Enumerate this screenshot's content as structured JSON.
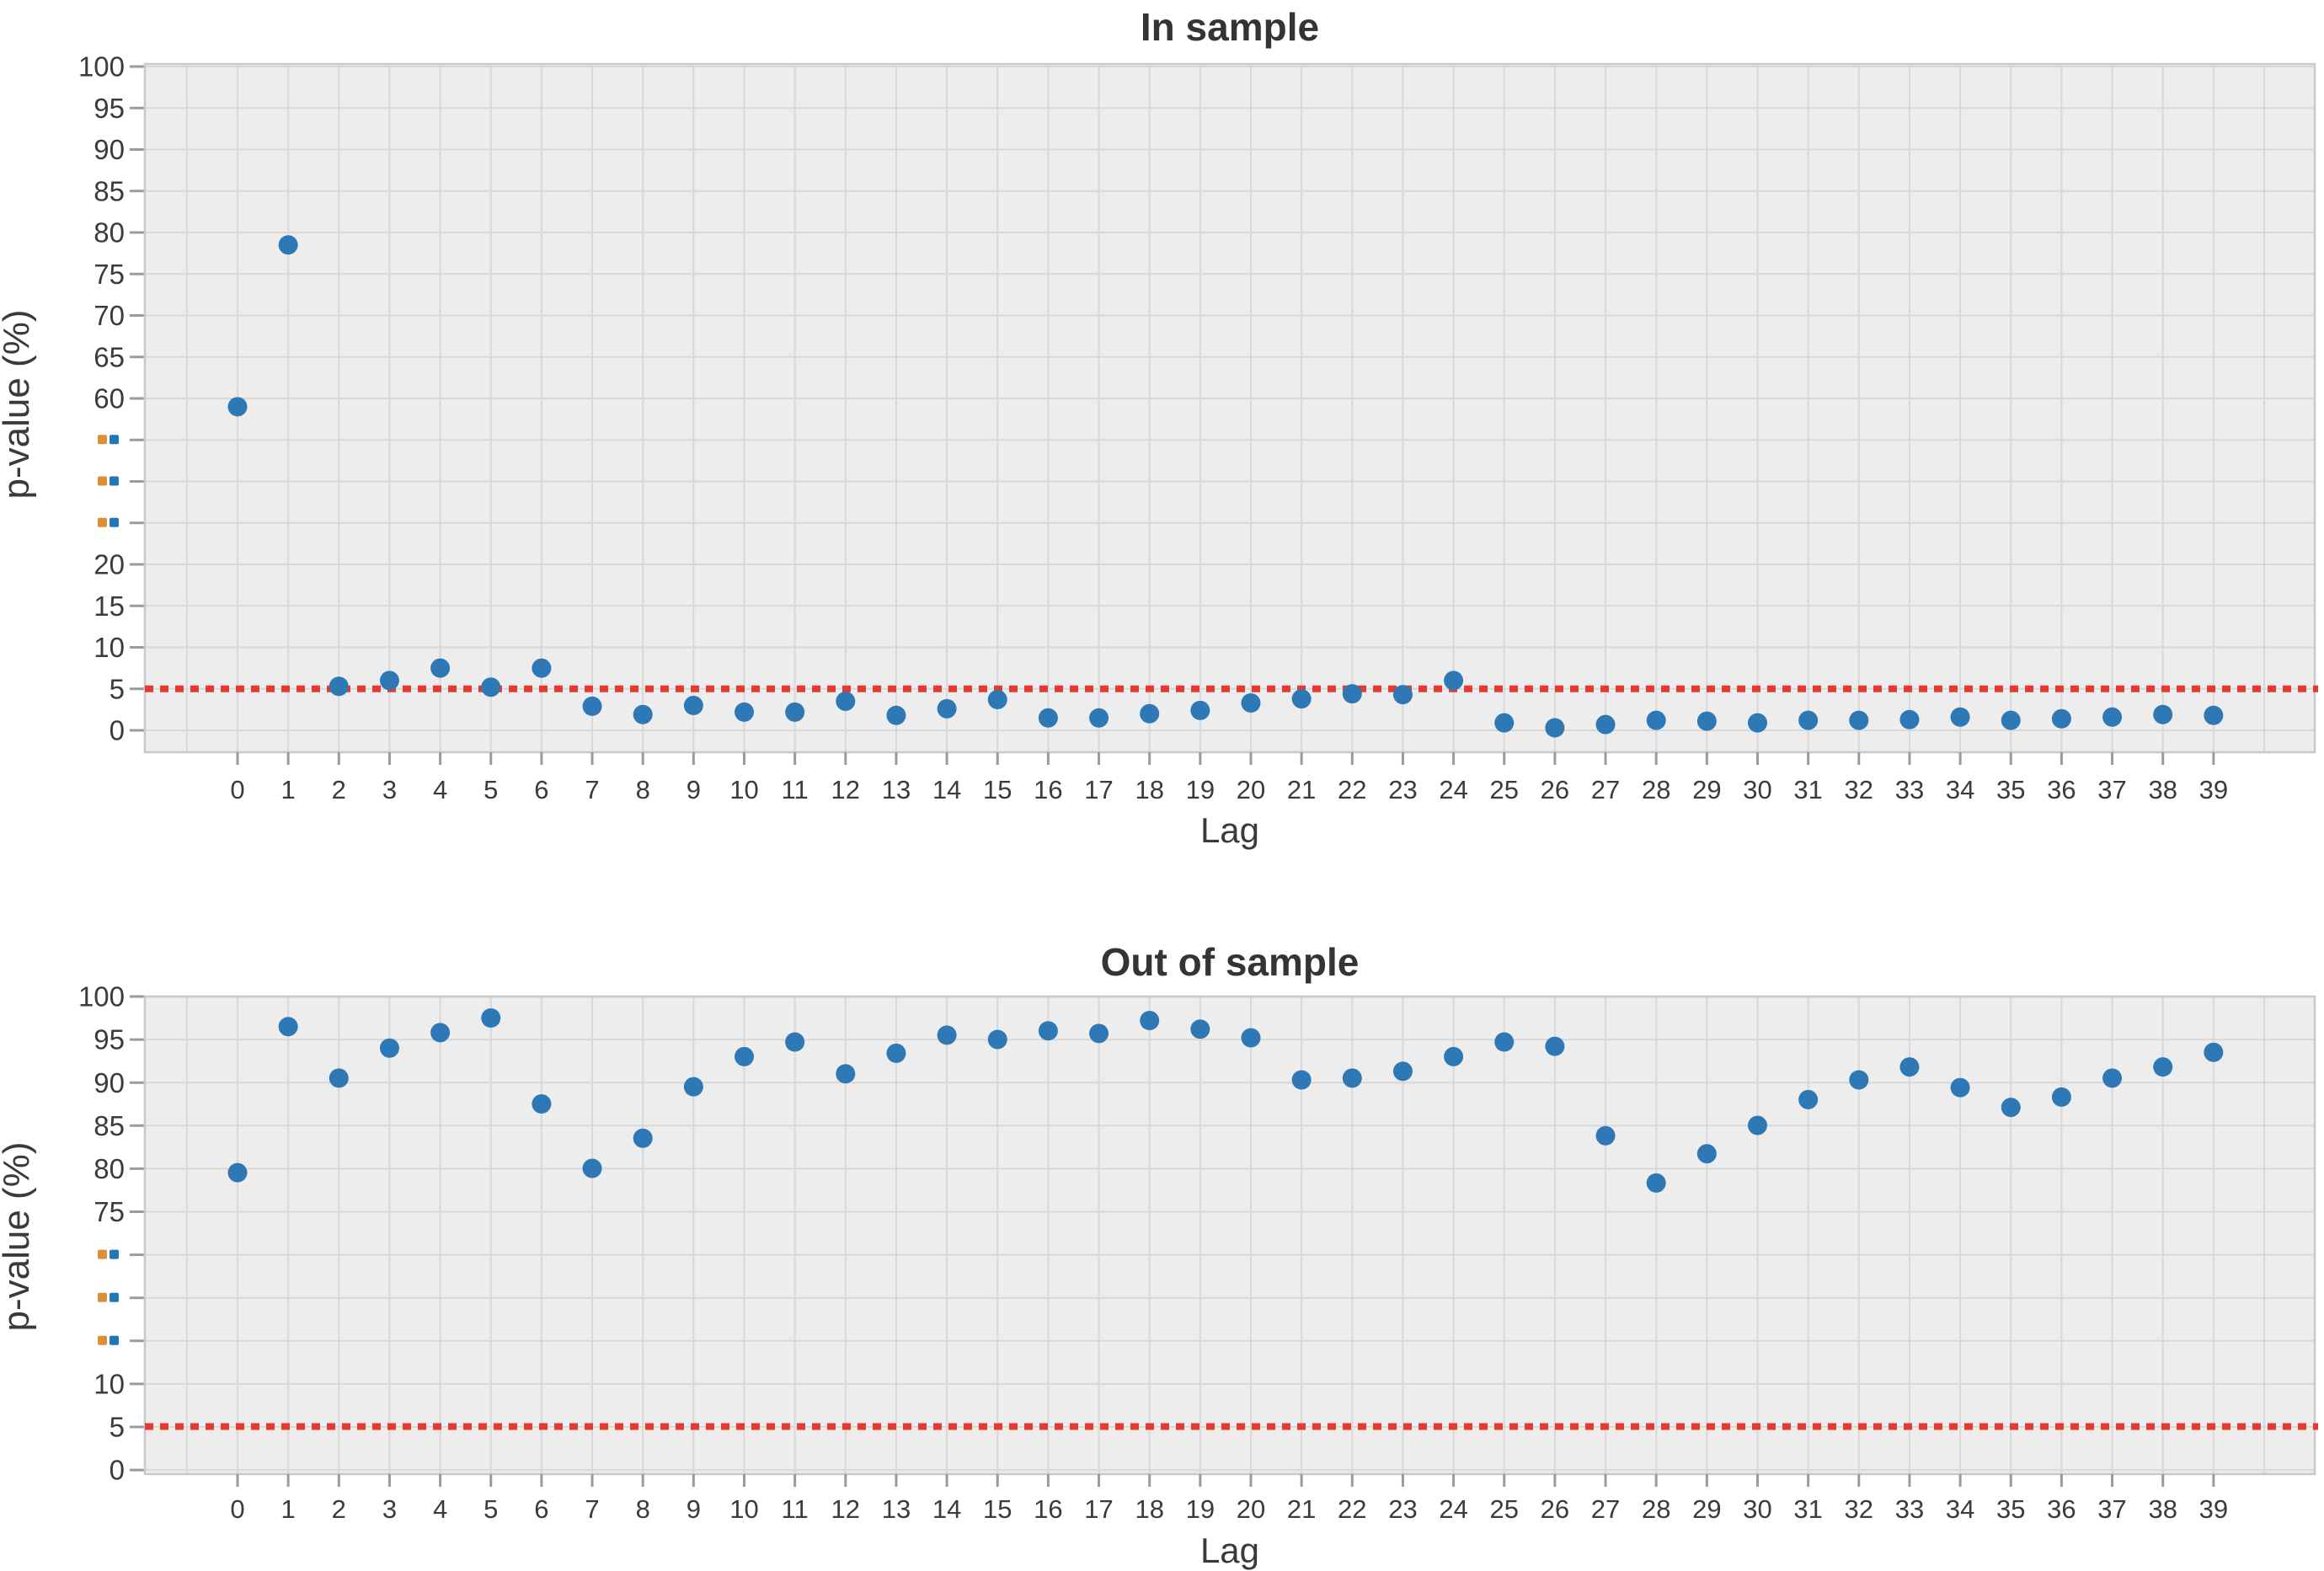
{
  "figure": {
    "background": "#ffffff"
  },
  "chart_data": [
    {
      "type": "scatter",
      "title": "In sample",
      "xlabel": "Lag",
      "ylabel": "p-value (%)",
      "x": [
        0,
        1,
        2,
        3,
        4,
        5,
        6,
        7,
        8,
        9,
        10,
        11,
        12,
        13,
        14,
        15,
        16,
        17,
        18,
        19,
        20,
        21,
        22,
        23,
        24,
        25,
        26,
        27,
        28,
        29,
        30,
        31,
        32,
        33,
        34,
        35,
        36,
        37,
        38,
        39
      ],
      "y": [
        58,
        78.5,
        5.3,
        6,
        7.5,
        5.2,
        7.5,
        2.9,
        1.9,
        3,
        2.2,
        2.2,
        3.5,
        1.8,
        2.6,
        3.7,
        1.5,
        1.5,
        2,
        2.4,
        3.3,
        3.8,
        4.4,
        4.3,
        6,
        0.9,
        0.3,
        0.7,
        1.2,
        1.1,
        0.9,
        1.2,
        1.2,
        1.3,
        1.6,
        1.2,
        1.4,
        1.6,
        1.9,
        1.8
      ],
      "significance_line": 5,
      "ylim": [
        -3,
        100
      ],
      "xlim": [
        -1.9,
        41
      ],
      "ytick_labels": [
        "100",
        "95",
        "90",
        "85",
        "80",
        "75",
        "70",
        "65",
        "60",
        "··",
        "··",
        "··",
        "20",
        "15",
        "10",
        "5",
        "0"
      ],
      "grid": true,
      "legend": false
    },
    {
      "type": "scatter",
      "title": "Out of sample",
      "xlabel": "Lag",
      "ylabel": "p-value (%)",
      "x": [
        0,
        1,
        2,
        3,
        4,
        5,
        6,
        7,
        8,
        9,
        10,
        11,
        12,
        13,
        14,
        15,
        16,
        17,
        18,
        19,
        20,
        21,
        22,
        23,
        24,
        25,
        26,
        27,
        28,
        29,
        30,
        31,
        32,
        33,
        34,
        35,
        36,
        37,
        38,
        39
      ],
      "y": [
        79.5,
        96.5,
        90.5,
        94,
        95.8,
        97.5,
        87.5,
        80,
        83.5,
        89.5,
        93,
        94.7,
        91,
        93.4,
        95.5,
        95,
        96,
        95.7,
        97.2,
        96.2,
        95.2,
        90.3,
        90.5,
        91.3,
        93,
        94.7,
        94.2,
        83.8,
        78.3,
        81.7,
        85,
        88,
        90.3,
        91.8,
        89.4,
        87.1,
        88.3,
        90.5,
        91.8,
        93.5
      ],
      "significance_line": 5,
      "ylim": [
        -1,
        100
      ],
      "xlim": [
        -1.9,
        41
      ],
      "ytick_labels": [
        "100",
        "95",
        "90",
        "85",
        "80",
        "75",
        "··",
        "··",
        "··",
        "10",
        "5",
        "0"
      ],
      "grid": true,
      "legend": false
    }
  ],
  "style": {
    "point_color": "#2e79b5",
    "significance_line_color": "#e33b2f",
    "plot_background": "#ededed",
    "grid_color": "#d8d8d8",
    "spine_color": "#c9c9c9",
    "tick_mark_color": "#9a9a9a",
    "label_color": "#3a3a3a",
    "dot_tick_colors": [
      "#dd8f33",
      "#1f77b4"
    ]
  }
}
